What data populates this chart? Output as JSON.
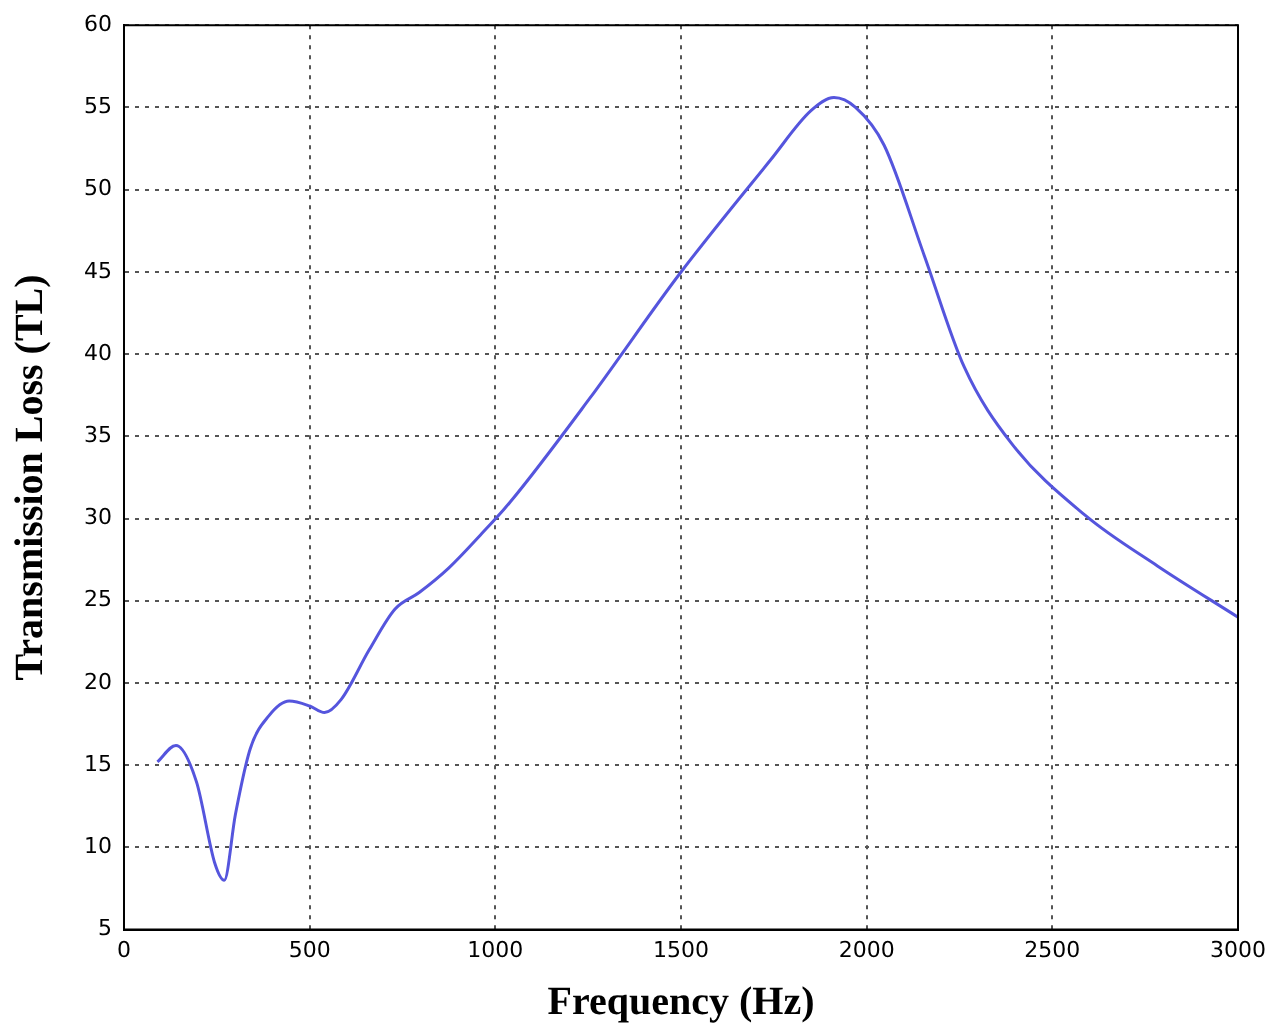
{
  "chart_data": {
    "type": "line",
    "xlabel": "Frequency (Hz)",
    "ylabel": "Transmission Loss (TL)",
    "x": [
      90,
      140,
      195,
      245,
      270,
      300,
      340,
      390,
      445,
      500,
      540,
      585,
      660,
      730,
      795,
      875,
      960,
      1040,
      1254,
      1497,
      1741,
      1850,
      1912,
      1970,
      2047,
      2155,
      2263,
      2389,
      2588,
      2784,
      3000
    ],
    "series": [
      {
        "color": "#5555dd",
        "values": [
          15.2,
          16.2,
          14,
          9,
          8,
          12,
          16,
          18,
          18.9,
          18.6,
          18.2,
          19,
          22,
          24.5,
          25.5,
          27,
          29,
          31,
          37.3,
          44.9,
          51.8,
          54.8,
          55.6,
          55,
          52.7,
          46,
          39.2,
          34.6,
          30.2,
          27.1,
          24
        ]
      }
    ],
    "xlim": [
      0,
      3000
    ],
    "xticks": [
      0,
      500,
      1000,
      1500,
      2000,
      2500,
      3000
    ],
    "ylim": [
      5,
      60
    ],
    "yticks": [
      5,
      10,
      15,
      20,
      25,
      30,
      35,
      40,
      45,
      50,
      55,
      60
    ],
    "grid": true,
    "legend": false,
    "marker": "none",
    "line_style": "solid"
  }
}
